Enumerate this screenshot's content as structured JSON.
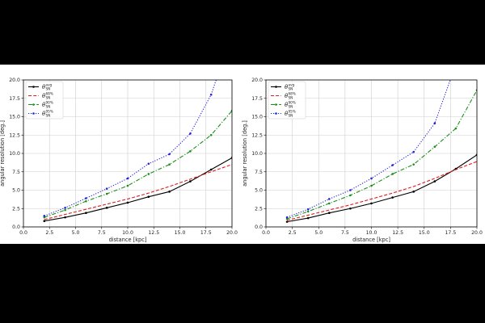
{
  "colors": {
    "frame": "#000000",
    "background": "#ffffff",
    "grid": "#cfcfcf",
    "axis": "#000000"
  },
  "chart_data": [
    {
      "type": "line",
      "xlabel": "distance [kpc]",
      "ylabel": "angular resolution [deg.]",
      "xlim": [
        0,
        20
      ],
      "ylim": [
        0,
        20
      ],
      "xticks": [
        "0.0",
        "2.5",
        "5.0",
        "7.5",
        "10.0",
        "12.5",
        "15.0",
        "17.5",
        "20.0"
      ],
      "yticks": [
        "0.0",
        "2.5",
        "5.0",
        "7.5",
        "10.0",
        "12.5",
        "15.0",
        "17.5",
        "20.0"
      ],
      "grid": true,
      "legend_position": "top-left",
      "series": [
        {
          "name": "θ",
          "sup": "avg",
          "sub": "SN",
          "color": "#000000",
          "dash": "solid",
          "marker": "dot",
          "x": [
            2,
            4,
            6,
            8,
            10,
            12,
            14,
            16,
            18,
            20
          ],
          "y": [
            0.8,
            1.3,
            1.9,
            2.6,
            3.3,
            4.1,
            4.8,
            6.2,
            7.8,
            9.4
          ]
        },
        {
          "name": "θ",
          "sup": "68%",
          "sub": "SN",
          "color": "#e41a1c",
          "dash": "dashed",
          "marker": "none",
          "x": [
            2,
            4,
            6,
            8,
            10,
            12,
            14,
            16,
            18,
            20
          ],
          "y": [
            1.0,
            1.7,
            2.4,
            3.1,
            3.8,
            4.6,
            5.5,
            6.5,
            7.5,
            8.5
          ]
        },
        {
          "name": "θ",
          "sup": "90%",
          "sub": "SN",
          "color": "#1a8f1a",
          "dash": "dashdot",
          "marker": "dot",
          "x": [
            2,
            4,
            6,
            8,
            10,
            12,
            14,
            16,
            18,
            20
          ],
          "y": [
            1.3,
            2.3,
            3.5,
            4.5,
            5.6,
            7.2,
            8.5,
            10.3,
            12.5,
            15.8
          ]
        },
        {
          "name": "θ",
          "sup": "95%",
          "sub": "SN",
          "color": "#2222dd",
          "dash": "dotted",
          "marker": "dot",
          "x": [
            2,
            4,
            6,
            8,
            10,
            12,
            14,
            16,
            18,
            19.2
          ],
          "y": [
            1.5,
            2.6,
            3.9,
            5.2,
            6.6,
            8.6,
            9.9,
            12.7,
            18.0,
            23.0
          ]
        }
      ]
    },
    {
      "type": "line",
      "xlabel": "distance [kpc]",
      "ylabel": "angular resolution [deg.]",
      "xlim": [
        0,
        20
      ],
      "ylim": [
        0,
        20
      ],
      "xticks": [
        "0.0",
        "2.5",
        "5.0",
        "7.5",
        "10.0",
        "12.5",
        "15.0",
        "17.5",
        "20.0"
      ],
      "yticks": [
        "0.0",
        "2.5",
        "5.0",
        "7.5",
        "10.0",
        "12.5",
        "15.0",
        "17.5",
        "20.0"
      ],
      "grid": true,
      "legend_position": "top-left",
      "series": [
        {
          "name": "θ",
          "sup": "avg",
          "sub": "SN",
          "color": "#000000",
          "dash": "solid",
          "marker": "dot",
          "x": [
            2,
            4,
            6,
            8,
            10,
            12,
            14,
            16,
            18,
            20
          ],
          "y": [
            0.7,
            1.2,
            1.9,
            2.5,
            3.2,
            4.0,
            4.8,
            6.2,
            7.9,
            9.8
          ]
        },
        {
          "name": "θ",
          "sup": "68%",
          "sub": "SN",
          "color": "#e41a1c",
          "dash": "dashed",
          "marker": "none",
          "x": [
            2,
            4,
            6,
            8,
            10,
            12,
            14,
            16,
            18,
            20
          ],
          "y": [
            0.9,
            1.6,
            2.3,
            3.0,
            3.8,
            4.6,
            5.5,
            6.6,
            7.8,
            8.9
          ]
        },
        {
          "name": "θ",
          "sup": "90%",
          "sub": "SN",
          "color": "#1a8f1a",
          "dash": "dashdot",
          "marker": "dot",
          "x": [
            2,
            4,
            6,
            8,
            10,
            12,
            14,
            16,
            18,
            20
          ],
          "y": [
            1.1,
            2.1,
            3.2,
            4.3,
            5.6,
            7.2,
            8.5,
            10.9,
            13.4,
            18.6
          ]
        },
        {
          "name": "θ",
          "sup": "95%",
          "sub": "SN",
          "color": "#2222dd",
          "dash": "dotted",
          "marker": "dot",
          "x": [
            2,
            4,
            6,
            8,
            10,
            12,
            14,
            16,
            17.6
          ],
          "y": [
            1.3,
            2.4,
            3.8,
            5.0,
            6.6,
            8.4,
            10.2,
            14.1,
            20.5
          ]
        }
      ]
    }
  ]
}
